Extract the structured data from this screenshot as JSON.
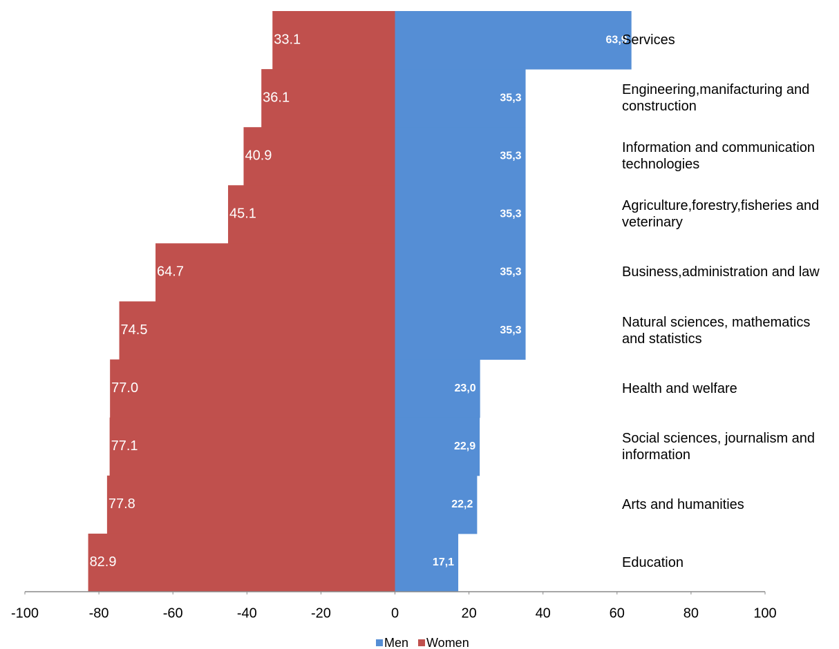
{
  "chart_data": {
    "type": "diverging-bar",
    "categories": [
      "Services",
      "Engineering,manifacturing and construction",
      "Information and communication technologies",
      "Agriculture,forestry,fisheries and veterinary",
      "Business,administration and law",
      "Natural sciences, mathematics and statistics",
      "Health and welfare",
      "Social sciences, journalism and information",
      "Arts and humanities",
      "Education"
    ],
    "series": [
      {
        "name": "Men",
        "color": "#558ed5",
        "values": [
          63.9,
          35.3,
          35.3,
          35.3,
          35.3,
          35.3,
          23.0,
          22.9,
          22.2,
          17.1
        ],
        "value_labels": [
          "63,9",
          "35,3",
          "35,3",
          "35,3",
          "35,3",
          "35,3",
          "23,0",
          "22,9",
          "22,2",
          "17,1"
        ]
      },
      {
        "name": "Women",
        "color": "#c0504d",
        "values": [
          -33.1,
          -36.1,
          -40.9,
          -45.1,
          -64.7,
          -74.5,
          -77.0,
          -77.1,
          -77.8,
          -82.9
        ],
        "value_labels": [
          "33.1",
          "36.1",
          "40.9",
          "45.1",
          "64.7",
          "74.5",
          "77.0",
          "77.1",
          "77.8",
          "82.9"
        ]
      }
    ],
    "xlim": [
      -100,
      100
    ],
    "xticks": [
      -100,
      -80,
      -60,
      -40,
      -20,
      0,
      20,
      40,
      60,
      80,
      100
    ]
  }
}
